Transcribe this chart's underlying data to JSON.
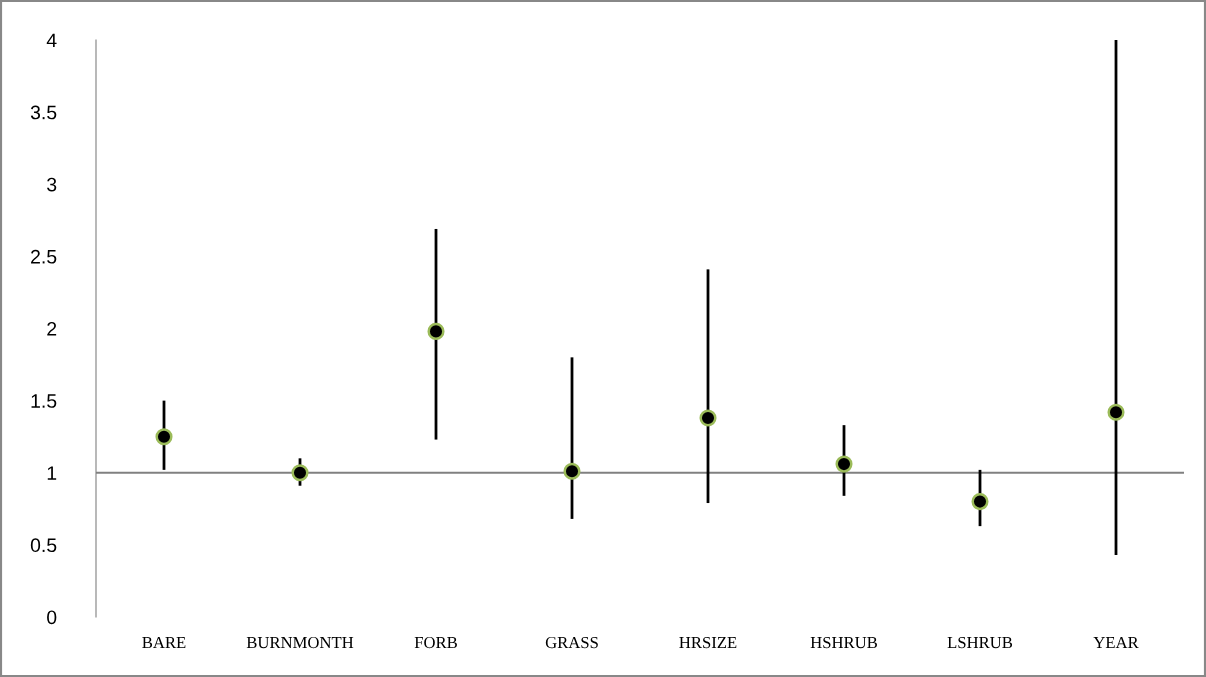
{
  "chart_data": {
    "type": "scatter",
    "categories": [
      "BARE",
      "BURNMONTH",
      "FORB",
      "GRASS",
      "HRSIZE",
      "HSHRUB",
      "LSHRUB",
      "YEAR"
    ],
    "series": [
      {
        "color": "#000000",
        "values": [
          1.25,
          1.0,
          1.98,
          1.01,
          1.38,
          1.06,
          0.8,
          1.42
        ],
        "errors": [
          [
            1.02,
            1.5
          ],
          [
            0.91,
            1.1
          ],
          [
            1.23,
            2.69
          ],
          [
            0.68,
            1.8
          ],
          [
            0.79,
            2.41
          ],
          [
            0.84,
            1.33
          ],
          [
            0.63,
            1.02
          ],
          [
            0.43,
            4.0
          ]
        ]
      }
    ],
    "ylim": [
      0,
      4
    ],
    "yticks": [
      0,
      0.5,
      1,
      1.5,
      2,
      2.5,
      3,
      3.5,
      4
    ],
    "ref_lines": [
      {
        "axis": "y",
        "value": 1,
        "color": "#808080"
      }
    ],
    "marker": "circle"
  }
}
